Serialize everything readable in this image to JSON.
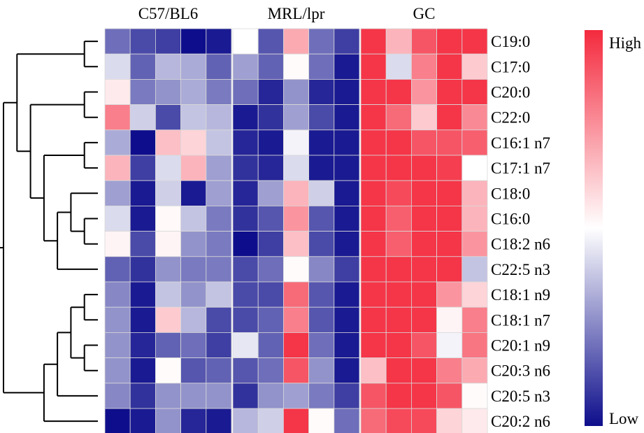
{
  "chart_data": {
    "type": "heatmap",
    "title": "",
    "xlabel": "",
    "ylabel": "",
    "groups": [
      {
        "label": "C57/BL6",
        "columns": 5
      },
      {
        "label": "MRL/lpr",
        "columns": 5
      },
      {
        "label": "GC",
        "columns": 5
      }
    ],
    "rows": [
      "C19:0",
      "C17:0",
      "C20:0",
      "C22:0",
      "C16:1 n7",
      "C17:1 n7",
      "C18:0",
      "C16:0",
      "C18:2 n6",
      "C22:5 n3",
      "C18:1 n9",
      "C18:1 n7",
      "C20:1 n9",
      "C20:3 n6",
      "C20:5 n3",
      "C20:2 n6"
    ],
    "values": [
      [
        -0.6,
        -0.75,
        -0.8,
        -1.0,
        -0.95,
        0.0,
        -0.7,
        0.4,
        -0.6,
        -0.8,
        0.95,
        0.35,
        0.8,
        0.95,
        0.95
      ],
      [
        -0.15,
        -0.65,
        -0.3,
        -0.35,
        -0.65,
        -0.4,
        -0.65,
        0.02,
        -0.6,
        -0.95,
        0.95,
        -0.15,
        0.6,
        0.95,
        0.25
      ],
      [
        0.1,
        -0.55,
        -0.45,
        -0.35,
        -0.55,
        -0.6,
        -0.9,
        -0.45,
        -0.9,
        -0.95,
        0.95,
        0.95,
        0.5,
        0.95,
        0.95
      ],
      [
        0.6,
        -0.2,
        -0.75,
        -0.25,
        -0.3,
        -0.95,
        -0.85,
        -0.4,
        -0.75,
        -0.95,
        0.95,
        0.7,
        0.25,
        0.95,
        0.55
      ],
      [
        -0.35,
        -1.0,
        0.3,
        0.2,
        -0.25,
        -0.9,
        -0.95,
        -0.05,
        -0.95,
        -0.95,
        0.95,
        0.95,
        0.8,
        0.8,
        0.75
      ],
      [
        0.35,
        -0.8,
        -0.15,
        0.35,
        -0.4,
        -0.85,
        -0.9,
        -0.15,
        -0.95,
        -0.95,
        0.95,
        0.95,
        0.95,
        0.9,
        0.0
      ],
      [
        -0.4,
        -0.95,
        -0.2,
        -0.95,
        -0.4,
        -0.9,
        -0.4,
        0.35,
        -0.2,
        -0.95,
        0.95,
        0.85,
        0.95,
        0.95,
        0.35
      ],
      [
        -0.15,
        -0.95,
        0.03,
        -0.25,
        -0.55,
        -0.85,
        -0.7,
        0.5,
        -0.7,
        -0.95,
        0.95,
        0.75,
        0.95,
        0.95,
        0.35
      ],
      [
        0.05,
        -0.75,
        0.05,
        -0.45,
        -0.55,
        -1.0,
        -0.8,
        0.3,
        -0.75,
        -0.95,
        0.95,
        0.75,
        0.95,
        0.95,
        0.5
      ],
      [
        -0.65,
        -0.85,
        -0.45,
        -0.55,
        -0.55,
        -0.75,
        -0.6,
        0.02,
        -0.5,
        -0.8,
        0.95,
        0.95,
        0.95,
        0.95,
        -0.25
      ],
      [
        -0.5,
        -0.95,
        -0.25,
        -0.45,
        -0.25,
        -0.75,
        -0.75,
        0.7,
        -0.7,
        -0.95,
        0.95,
        0.95,
        0.95,
        0.5,
        0.2
      ],
      [
        -0.45,
        -0.95,
        0.25,
        -0.3,
        -0.75,
        -0.75,
        -0.65,
        0.6,
        -0.7,
        -0.95,
        0.95,
        0.95,
        0.95,
        0.05,
        0.6
      ],
      [
        -0.45,
        -0.9,
        -0.65,
        -0.6,
        -0.8,
        -0.1,
        -0.65,
        0.95,
        -0.6,
        -0.95,
        0.95,
        0.95,
        0.8,
        -0.05,
        0.65
      ],
      [
        -0.45,
        -0.95,
        0.02,
        -0.7,
        -0.65,
        -0.7,
        -0.6,
        0.8,
        -0.45,
        -0.95,
        0.3,
        0.95,
        0.95,
        0.6,
        0.4
      ],
      [
        -0.5,
        -0.85,
        -0.45,
        -0.45,
        -0.45,
        -0.85,
        -0.45,
        -0.4,
        -0.55,
        -0.8,
        0.8,
        0.95,
        0.95,
        0.8,
        0.02
      ],
      [
        -1.0,
        -0.95,
        -0.45,
        -0.9,
        -0.95,
        -0.3,
        -0.2,
        0.95,
        0.02,
        -0.6,
        0.7,
        0.85,
        0.85,
        0.2,
        0.1
      ]
    ],
    "color_scale": {
      "low_label": "Low",
      "high_label": "High",
      "low_color": "#0e0e8c",
      "mid_color": "#ffffff",
      "high_color": "#f42a3e",
      "range": [
        -1,
        1
      ]
    },
    "dendrogram": {
      "side": "left",
      "tree": [
        [
          [
            0,
            1
          ],
          [
            [
              2,
              3
            ],
            [
              [
                4,
                5
              ],
              [
                [
                  6,
                  [
                    7,
                    8
                  ]
                ],
                9
              ]
            ]
          ]
        ],
        [
          [
            [
              [
                10,
                11
              ],
              [
                12,
                13
              ]
            ],
            14
          ],
          15
        ]
      ]
    }
  }
}
